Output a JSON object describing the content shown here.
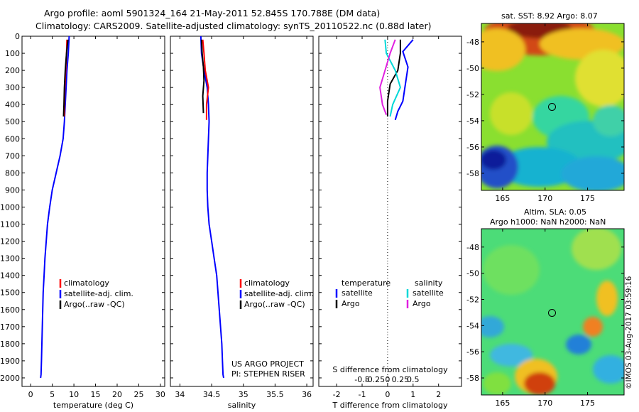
{
  "title_line1": "Argo profile: aoml 5901324_164 21-May-2011 52.845S 170.788E (DM data)",
  "title_line2": "Climatology: CARS2009. Satellite-adjusted climatology: synTS_20110522.nc (0.88d later)",
  "sst_title": "sat. SST: 8.92 Argo: 8.07",
  "sla_title_line1": "Altim. SLA: 0.05",
  "sla_title_line2": "Argo h1000: NaN h2000: NaN",
  "credit": "US ARGO PROJECT",
  "pi": "PI: STEPHEN RISER",
  "stamp": "©IMOS 03-Aug-2017 03:59:16",
  "colors": {
    "climatology": "#ff0000",
    "satellite": "#0000ff",
    "argo": "#000000",
    "sal_satellite": "#00d8d8",
    "sal_argo": "#e020e0"
  },
  "chart_data": [
    {
      "type": "line",
      "xlabel": "temperature (deg C)",
      "ylabel": "",
      "xlim": [
        -2,
        31
      ],
      "ylim": [
        2050,
        0
      ],
      "xticks": [
        0,
        5,
        10,
        15,
        20,
        25,
        30
      ],
      "yticks": [
        0,
        100,
        200,
        300,
        400,
        500,
        600,
        700,
        800,
        900,
        1000,
        1100,
        1200,
        1300,
        1400,
        1500,
        1600,
        1700,
        1800,
        1900,
        2000
      ],
      "legend": [
        "climatology",
        "satellite-adj. clim.",
        "Argo(..raw -QC)"
      ],
      "series": [
        {
          "name": "satellite-adj. clim.",
          "color": "#0000ff",
          "x": [
            8.9,
            8.7,
            8.4,
            8.2,
            8.0,
            7.8,
            7.5,
            6.8,
            5.9,
            5.0,
            4.4,
            3.9,
            3.6,
            3.3,
            3.1,
            2.9,
            2.8,
            2.7,
            2.6,
            2.5,
            2.4,
            2.3
          ],
          "y": [
            0,
            100,
            200,
            300,
            400,
            500,
            600,
            700,
            800,
            900,
            1000,
            1100,
            1200,
            1300,
            1400,
            1500,
            1600,
            1700,
            1800,
            1900,
            1980,
            2000
          ]
        },
        {
          "name": "climatology",
          "color": "#ff0000",
          "x": [
            8.4,
            8.3,
            8.1,
            7.9,
            7.8,
            7.8
          ],
          "y": [
            20,
            100,
            200,
            300,
            400,
            470
          ]
        },
        {
          "name": "Argo(..raw -QC)",
          "color": "#000000",
          "x": [
            8.6,
            8.3,
            8.0,
            7.8,
            7.7,
            7.6
          ],
          "y": [
            20,
            100,
            200,
            300,
            400,
            470
          ]
        }
      ]
    },
    {
      "type": "line",
      "xlabel": "salinity",
      "ylabel": "",
      "xlim": [
        33.85,
        36.1
      ],
      "ylim": [
        2050,
        0
      ],
      "xticks": [
        34,
        34.5,
        35,
        35.5,
        36
      ],
      "xticklabels": [
        "34",
        "34.5",
        "35",
        "35.5",
        "36"
      ],
      "legend": [
        "climatology",
        "satellite-adj. clim.",
        "Argo(..raw -QC)"
      ],
      "series": [
        {
          "name": "satellite-adj. clim.",
          "color": "#0000ff",
          "x": [
            34.33,
            34.34,
            34.38,
            34.43,
            34.45,
            34.46,
            34.45,
            34.44,
            34.43,
            34.43,
            34.44,
            34.46,
            34.5,
            34.54,
            34.58,
            34.6,
            34.62,
            34.64,
            34.66,
            34.67,
            34.68,
            34.69
          ],
          "y": [
            0,
            100,
            200,
            300,
            400,
            500,
            600,
            700,
            800,
            900,
            1000,
            1100,
            1200,
            1300,
            1400,
            1500,
            1600,
            1700,
            1800,
            1900,
            1980,
            2000
          ]
        },
        {
          "name": "climatology",
          "color": "#ff0000",
          "x": [
            34.36,
            34.38,
            34.4,
            34.45,
            34.42,
            34.42
          ],
          "y": [
            20,
            100,
            200,
            300,
            400,
            490
          ]
        },
        {
          "name": "Argo(..raw -QC)",
          "color": "#000000",
          "x": [
            34.34,
            34.35,
            34.37,
            34.38,
            34.36,
            34.37
          ],
          "y": [
            20,
            100,
            180,
            260,
            350,
            450
          ]
        }
      ]
    },
    {
      "type": "line",
      "xlabel": "T difference from climatology",
      "secondary_xlabel": "S difference from climatology",
      "xlim": [
        -2.7,
        2.9
      ],
      "ylim": [
        2050,
        0
      ],
      "xticks": [
        -2,
        -1,
        0,
        1,
        2
      ],
      "xticklabels": [
        "-2",
        "-1",
        "0",
        "1",
        "2"
      ],
      "sticklabels": [
        "-0.5",
        "-0.25",
        "0",
        "0.25",
        "0.5"
      ],
      "legend_headers": [
        "temperature",
        "salinity"
      ],
      "legend": [
        "satellite",
        "Argo",
        "satellite",
        "Argo"
      ],
      "series": [
        {
          "name": "satellite",
          "color": "#0000ff",
          "x": [
            1.0,
            0.6,
            0.8,
            0.7,
            0.6,
            0.4,
            0.3
          ],
          "y": [
            20,
            90,
            180,
            280,
            380,
            440,
            490
          ]
        },
        {
          "name": "Argo",
          "color": "#000000",
          "x": [
            0.5,
            0.5,
            0.4,
            0.1,
            0.0,
            0.0
          ],
          "y": [
            20,
            100,
            200,
            280,
            380,
            470
          ]
        },
        {
          "name": "satellite",
          "color": "#00d8d8",
          "x": [
            -0.1,
            -0.05,
            0.3,
            0.5,
            0.2,
            0.1
          ],
          "y": [
            20,
            100,
            200,
            300,
            400,
            470
          ]
        },
        {
          "name": "Argo",
          "color": "#e020e0",
          "x": [
            0.3,
            0.1,
            -0.1,
            -0.3,
            -0.2,
            -0.05
          ],
          "y": [
            20,
            100,
            200,
            300,
            400,
            460
          ]
        }
      ]
    },
    {
      "type": "heatmap",
      "title": "sat. SST: 8.92 Argo: 8.07",
      "xticks": [
        165,
        170,
        175
      ],
      "yticks": [
        -48,
        -50,
        -52,
        -54,
        -56,
        -58
      ],
      "xlim": [
        162.5,
        179.3
      ],
      "ylim": [
        -59.3,
        -46.6
      ],
      "marker": {
        "lon": 170.788,
        "lat": -52.845
      }
    },
    {
      "type": "heatmap",
      "title": "Altim. SLA: 0.05",
      "subtitle": "Argo h1000: NaN h2000: NaN",
      "xticks": [
        165,
        170,
        175
      ],
      "yticks": [
        -48,
        -50,
        -52,
        -54,
        -56,
        -58
      ],
      "xlim": [
        162.5,
        179.3
      ],
      "ylim": [
        -59.3,
        -46.6
      ],
      "marker": {
        "lon": 170.788,
        "lat": -52.845
      }
    }
  ]
}
